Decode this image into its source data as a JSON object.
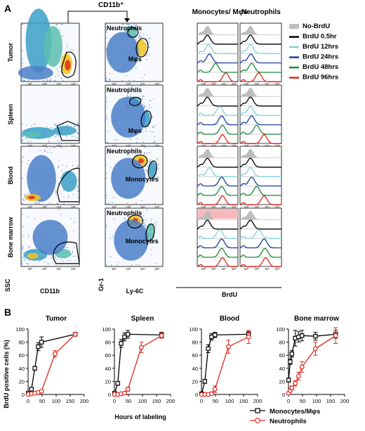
{
  "panel_a": {
    "label": "A",
    "gate_label": "CD11b⁺",
    "col_monocytes": "Monocytes/ Mφs",
    "col_neutrophils": "Neutrophils",
    "row_labels": [
      "Tumor",
      "Spleen",
      "Blood",
      "Bone marrow"
    ],
    "gate_names": [
      [
        "Neutrophils",
        "Mφs"
      ],
      [
        "Neutrophils",
        "Mφs"
      ],
      [
        "Neutrophils",
        "Monocytes"
      ],
      [
        "Neutrophils",
        "Monocytes"
      ]
    ],
    "axis_ssc": "SSC",
    "axis_cd11b": "CD11b",
    "axis_gr1": "Gr-1",
    "axis_ly6c": "Ly-6C",
    "axis_brdu": "BrdU",
    "tick_labels": [
      "10²",
      "10³",
      "10⁴",
      "10⁵"
    ],
    "legend": [
      {
        "label": "No-BrdU",
        "color": "#bdbdbd",
        "fill": true
      },
      {
        "label": "BrdU 0.5hr",
        "color": "#000000"
      },
      {
        "label": "BrdU 12hrs",
        "color": "#7fd1d6"
      },
      {
        "label": "BrdU 24hrs",
        "color": "#1a3a9c"
      },
      {
        "label": "BrdU 48hrs",
        "color": "#1b8a3a"
      },
      {
        "label": "BrdU 96hrs",
        "color": "#e0271c"
      }
    ]
  },
  "panel_b": {
    "label": "B",
    "ylabel": "BrdU positive cells (%)",
    "xlabel": "Hours of labeling",
    "legend": [
      {
        "label": "Monocytes/Mφs",
        "color": "#000000"
      },
      {
        "label": "Neutrophils",
        "color": "#e0271c"
      }
    ]
  },
  "chart_data": [
    {
      "type": "line",
      "title": "Tumor",
      "xlim": [
        0,
        200
      ],
      "ylim": [
        0,
        100
      ],
      "xticks": [
        0,
        50,
        100,
        150,
        200
      ],
      "yticks": [
        0,
        20,
        40,
        60,
        80,
        100
      ],
      "series": [
        {
          "name": "Monocytes/Mφs",
          "color": "#000000",
          "marker": "square",
          "x": [
            0.5,
            12,
            24,
            36,
            48,
            168
          ],
          "y": [
            2,
            8,
            40,
            73,
            80,
            92
          ],
          "err": [
            0,
            2,
            3,
            6,
            8,
            2
          ]
        },
        {
          "name": "Neutrophils",
          "color": "#e0271c",
          "marker": "circle",
          "x": [
            0.5,
            12,
            24,
            36,
            48,
            96,
            168
          ],
          "y": [
            0,
            1,
            2,
            3,
            5,
            62,
            92
          ],
          "err": [
            0,
            0,
            1,
            1,
            2,
            5,
            3
          ]
        }
      ]
    },
    {
      "type": "line",
      "title": "Spleen",
      "xlim": [
        0,
        200
      ],
      "ylim": [
        0,
        100
      ],
      "xticks": [
        0,
        50,
        100,
        150,
        200
      ],
      "yticks": [
        0,
        20,
        40,
        60,
        80,
        100
      ],
      "series": [
        {
          "name": "Monocytes/Mφs",
          "color": "#000000",
          "marker": "square",
          "x": [
            0.5,
            12,
            24,
            36,
            48,
            168
          ],
          "y": [
            2,
            17,
            78,
            88,
            92,
            91
          ],
          "err": [
            0,
            3,
            6,
            6,
            6,
            4
          ]
        },
        {
          "name": "Neutrophils",
          "color": "#e0271c",
          "marker": "circle",
          "x": [
            0.5,
            12,
            24,
            36,
            48,
            96,
            168
          ],
          "y": [
            0,
            0,
            1,
            2,
            8,
            72,
            90
          ],
          "err": [
            0,
            0,
            0,
            1,
            3,
            8,
            4
          ]
        }
      ]
    },
    {
      "type": "line",
      "title": "Blood",
      "xlim": [
        0,
        200
      ],
      "ylim": [
        0,
        100
      ],
      "xticks": [
        0,
        50,
        100,
        150,
        200
      ],
      "yticks": [
        0,
        20,
        40,
        60,
        80,
        100
      ],
      "series": [
        {
          "name": "Monocytes/Mφs",
          "color": "#000000",
          "marker": "square",
          "x": [
            0.5,
            12,
            24,
            36,
            48,
            168
          ],
          "y": [
            1,
            20,
            70,
            88,
            91,
            92
          ],
          "err": [
            0,
            3,
            6,
            5,
            4,
            4
          ]
        },
        {
          "name": "Neutrophils",
          "color": "#e0271c",
          "marker": "circle",
          "x": [
            0.5,
            12,
            24,
            36,
            48,
            96,
            168
          ],
          "y": [
            0,
            0,
            0,
            1,
            8,
            73,
            88
          ],
          "err": [
            0,
            0,
            0,
            1,
            5,
            10,
            10
          ]
        }
      ]
    },
    {
      "type": "line",
      "title": "Bone marrow",
      "xlim": [
        0,
        200
      ],
      "ylim": [
        0,
        100
      ],
      "xticks": [
        0,
        50,
        100,
        150,
        200
      ],
      "yticks": [
        0,
        20,
        40,
        60,
        80,
        100
      ],
      "series": [
        {
          "name": "Monocytes/Mφs",
          "color": "#000000",
          "marker": "square",
          "x": [
            0.5,
            6,
            12,
            24,
            36,
            48,
            96,
            168
          ],
          "y": [
            22,
            50,
            62,
            86,
            88,
            90,
            89,
            92
          ],
          "err": [
            3,
            4,
            5,
            12,
            8,
            8,
            6,
            6
          ]
        },
        {
          "name": "Neutrophils",
          "color": "#e0271c",
          "marker": "circle",
          "x": [
            0.5,
            6,
            12,
            24,
            36,
            48,
            96,
            168
          ],
          "y": [
            2,
            6,
            10,
            17,
            28,
            42,
            70,
            90
          ],
          "err": [
            1,
            2,
            3,
            4,
            6,
            8,
            10,
            12
          ]
        }
      ]
    }
  ]
}
